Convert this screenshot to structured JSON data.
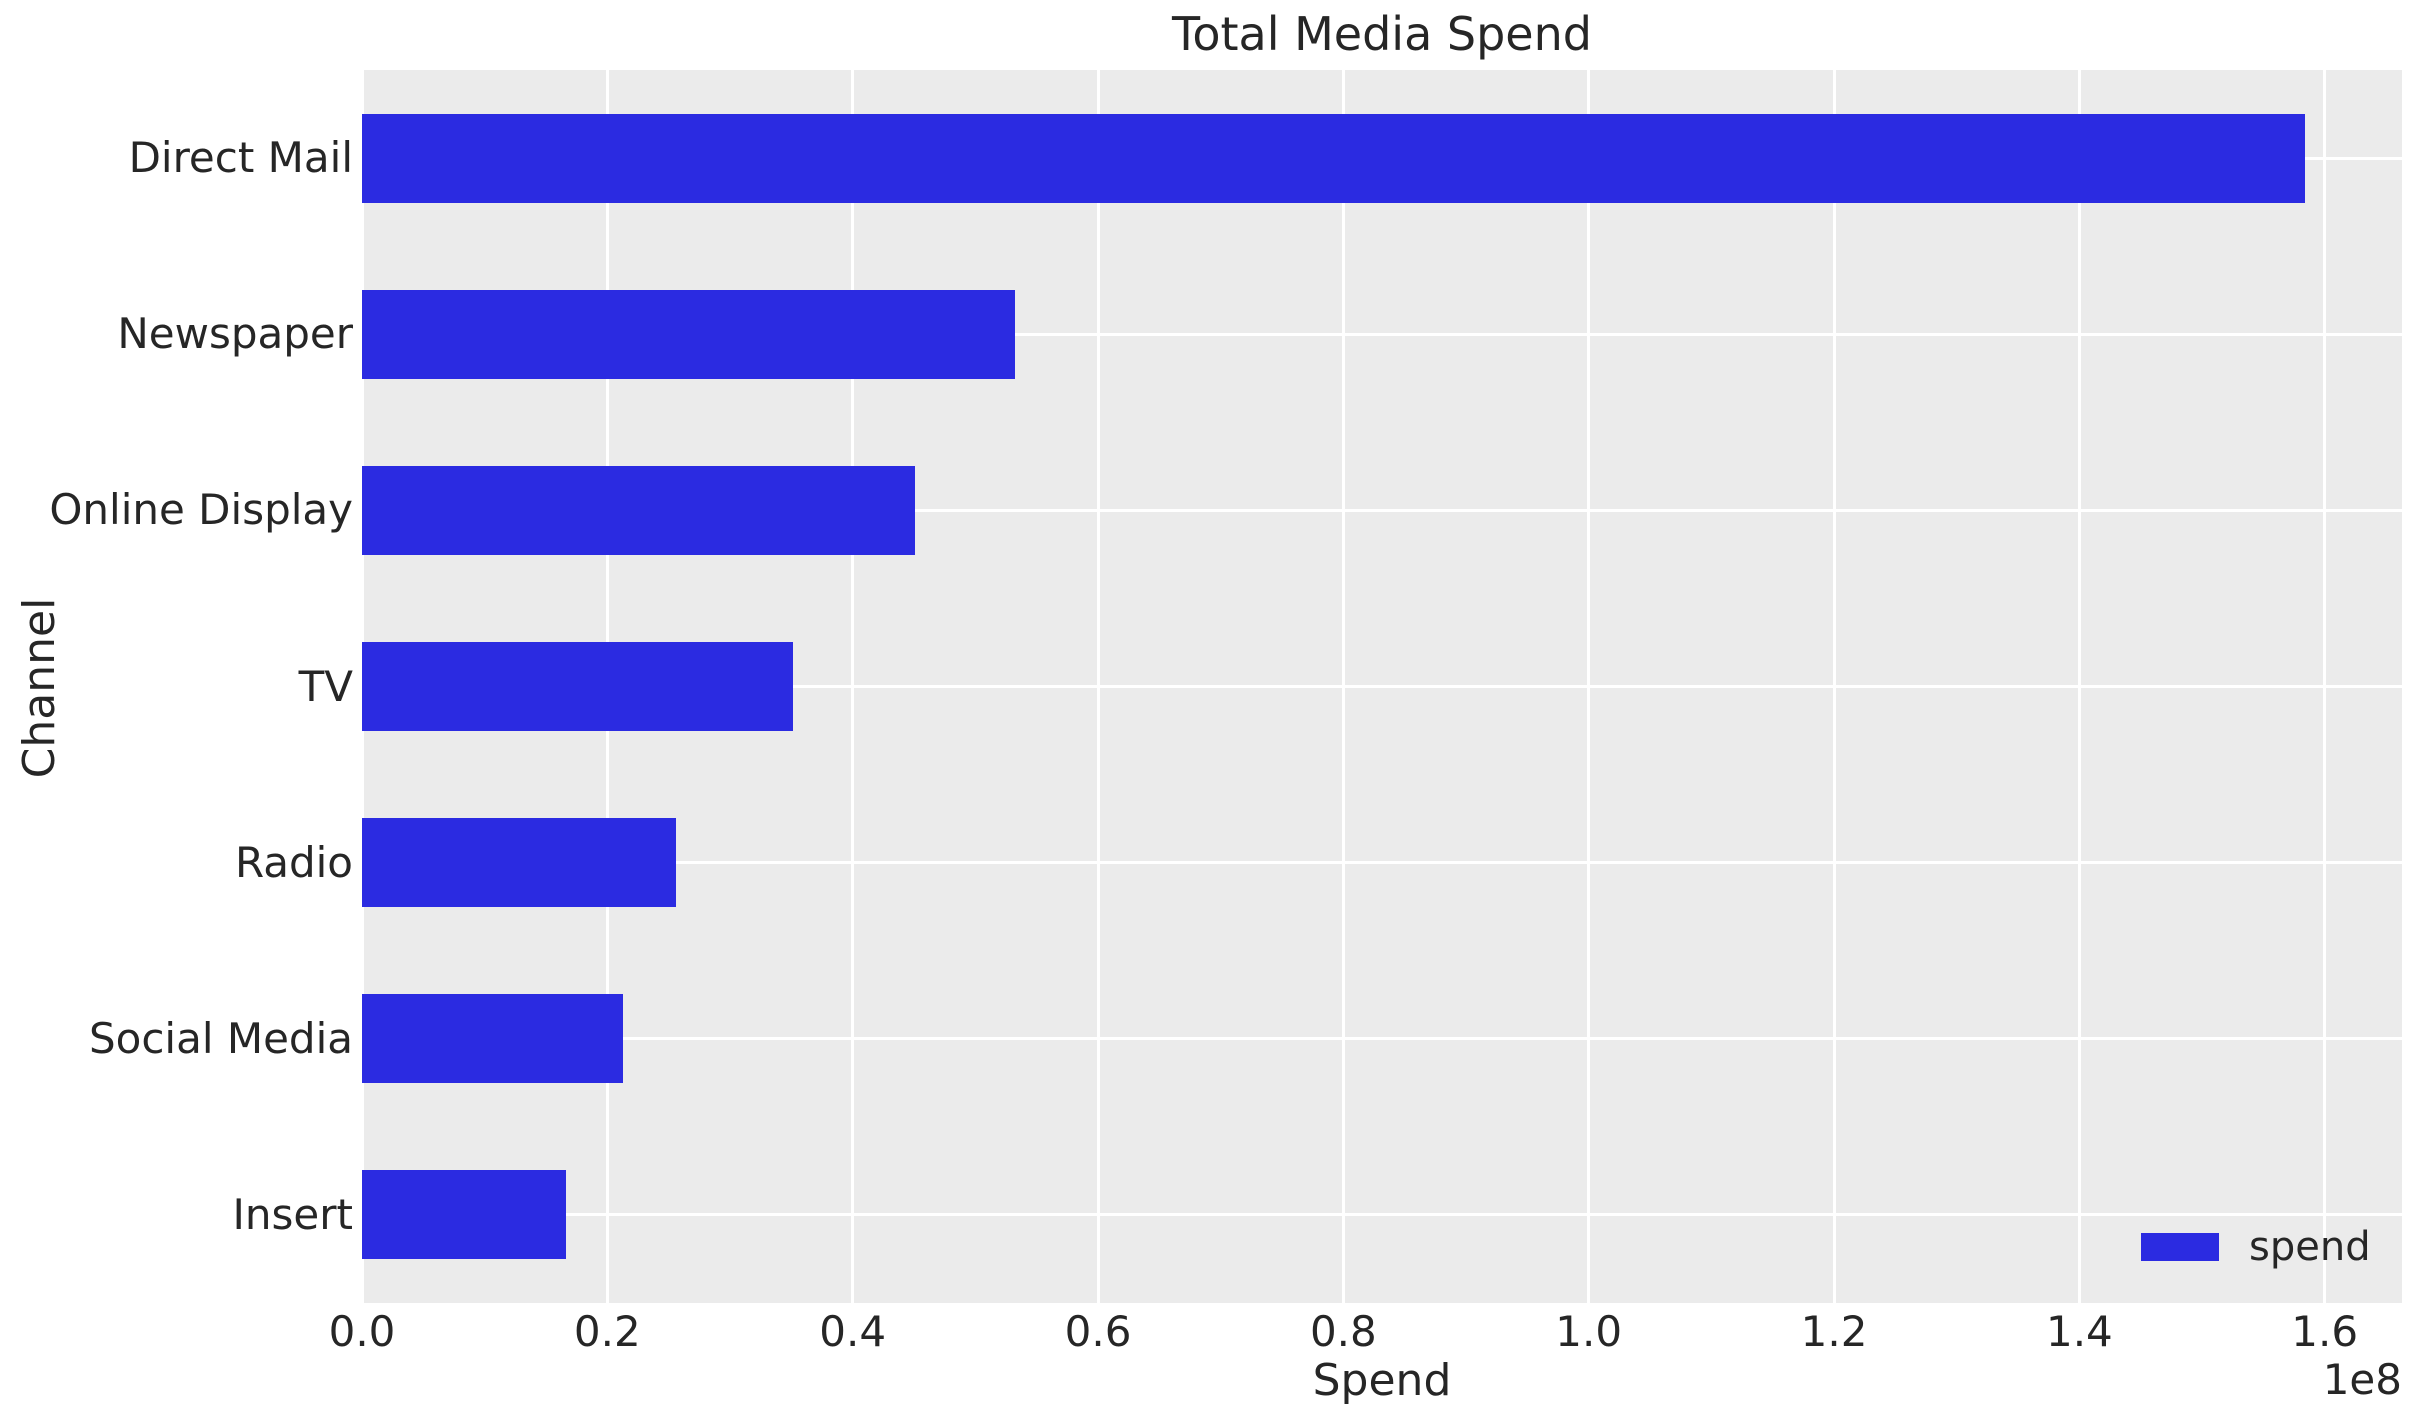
{
  "chart_data": {
    "type": "bar",
    "orientation": "horizontal",
    "title": "Total Media Spend",
    "xlabel": "Spend",
    "ylabel": "Channel",
    "categories": [
      "Direct Mail",
      "Newspaper",
      "Online Display",
      "TV",
      "Radio",
      "Social Media",
      "Insert"
    ],
    "series": [
      {
        "name": "spend",
        "values": [
          158400000,
          53200000,
          45100000,
          35100000,
          25600000,
          21300000,
          16600000
        ]
      }
    ],
    "xlim": [
      0,
      166300000
    ],
    "x_ticks": [
      0,
      20000000,
      40000000,
      60000000,
      80000000,
      100000000,
      120000000,
      140000000,
      160000000
    ],
    "x_tick_labels": [
      "0.0",
      "0.2",
      "0.4",
      "0.6",
      "0.8",
      "1.0",
      "1.2",
      "1.4",
      "1.6"
    ],
    "x_offset_label": "1e8",
    "grid": true,
    "legend": {
      "position": "lower right",
      "entries": [
        {
          "label": "spend",
          "color": "#2b2be1"
        }
      ]
    },
    "colors": {
      "bar": "#2b2be1",
      "plot_background": "#ebebeb",
      "gridline": "#ffffff",
      "text": "#262626",
      "figure_background": "#ffffff"
    }
  }
}
